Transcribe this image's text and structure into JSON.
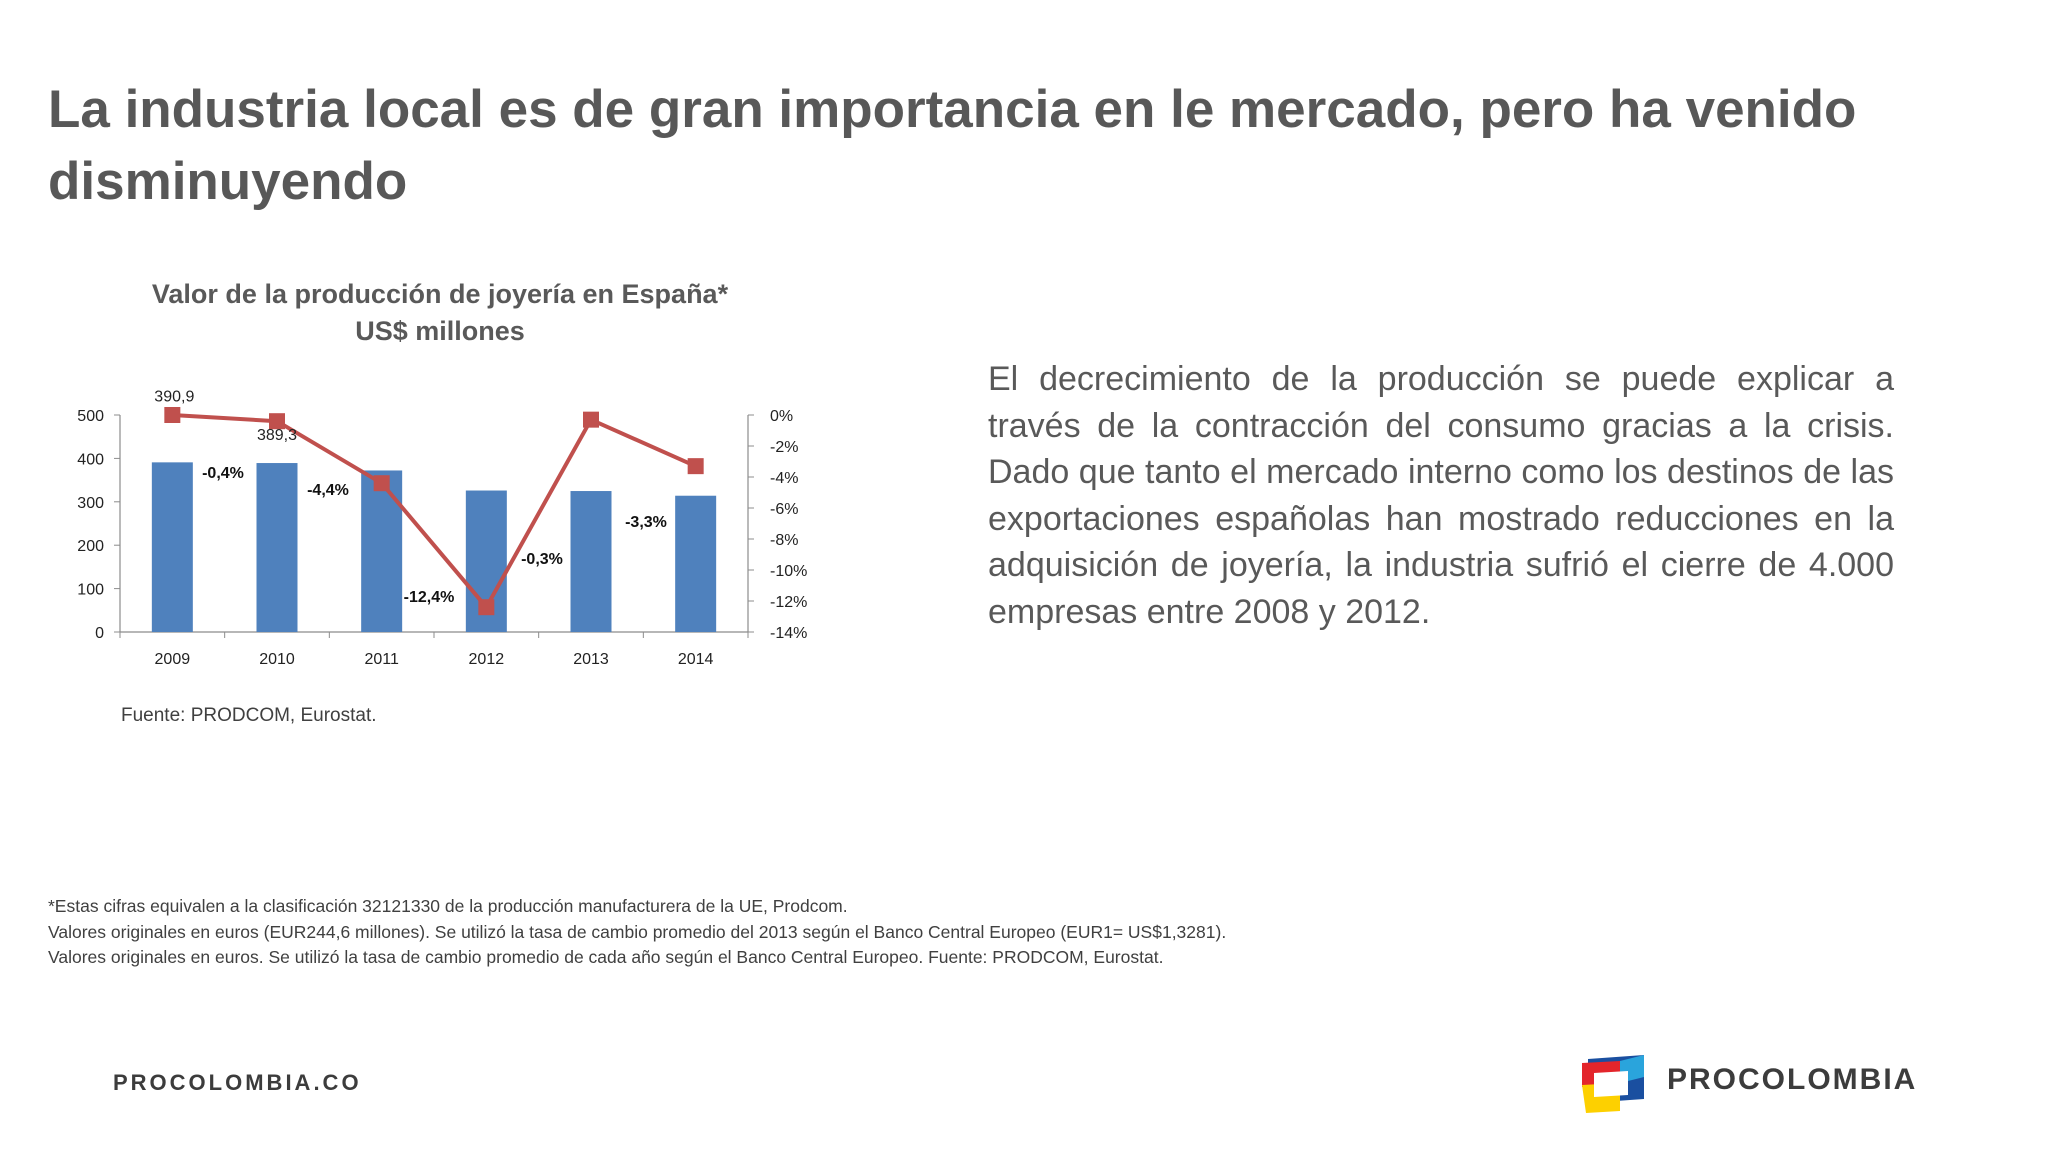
{
  "slide": {
    "title": "La industria local es de gran importancia en le mercado, pero ha venido disminuyendo",
    "body_text": "El decrecimiento de la producción se puede explicar a través de la contracción del consumo gracias a la crisis. Dado que tanto el mercado interno como los destinos de las exportaciones españolas han mostrado reducciones en la adquisición de joyería, la industria sufrió el cierre de 4.000 empresas entre 2008 y 2012.",
    "source": "Fuente: PRODCOM, Eurostat.",
    "footnotes": [
      "*Estas cifras equivalen a la clasificación 32121330 de la producción manufacturera de la UE, Prodcom.",
      "  Valores originales en euros (EUR244,6 millones). Se utilizó la tasa de cambio promedio del 2013 según el Banco Central Europeo (EUR1= US$1,3281).",
      "  Valores originales en euros. Se utilizó la tasa de cambio promedio de cada año según el Banco Central Europeo. Fuente: PRODCOM, Eurostat."
    ],
    "footer_url": "PROCOLOMBIA.CO",
    "brand": "PROCOLOMBIA"
  },
  "colors": {
    "bar": "#4f81bd",
    "line": "#c0504d",
    "title_text": "#585858",
    "logo_red": "#e3252b",
    "logo_yellow": "#fdd000",
    "logo_blue": "#1a4fa0",
    "logo_light_blue": "#2aa4dc"
  },
  "chart_data": {
    "type": "bar",
    "title": [
      "Valor de la producción de joyería en España*",
      "US$ millones"
    ],
    "categories": [
      "2009",
      "2010",
      "2011",
      "2012",
      "2013",
      "2014"
    ],
    "series": [
      {
        "kind": "bar",
        "axis": "left",
        "values": [
          390.9,
          389.3,
          372.2,
          326.0,
          324.8,
          314.0
        ],
        "labels": [
          "390,9",
          "389,3",
          "372,2",
          "326,0",
          "324,8",
          "314,0"
        ]
      },
      {
        "kind": "line",
        "axis": "right",
        "values": [
          0,
          -0.4,
          -4.4,
          -12.4,
          -0.3,
          -3.3
        ],
        "labels": [
          "",
          "-0,4%",
          "-4,4%",
          "-12,4%",
          "-0,3%",
          "-3,3%"
        ]
      }
    ],
    "y_left": {
      "min": 0,
      "max": 500,
      "ticks": [
        0,
        100,
        200,
        300,
        400,
        500
      ],
      "tick_labels": [
        "0",
        "100",
        "200",
        "300",
        "400",
        "500"
      ]
    },
    "y_right": {
      "min": -14,
      "max": 0,
      "ticks": [
        0,
        -2,
        -4,
        -6,
        -8,
        -10,
        -12,
        -14
      ],
      "tick_labels": [
        "0%",
        "-2%",
        "-4%",
        "-6%",
        "-8%",
        "-10%",
        "-12%",
        "-14%"
      ]
    },
    "grid": false,
    "legend": "none"
  }
}
